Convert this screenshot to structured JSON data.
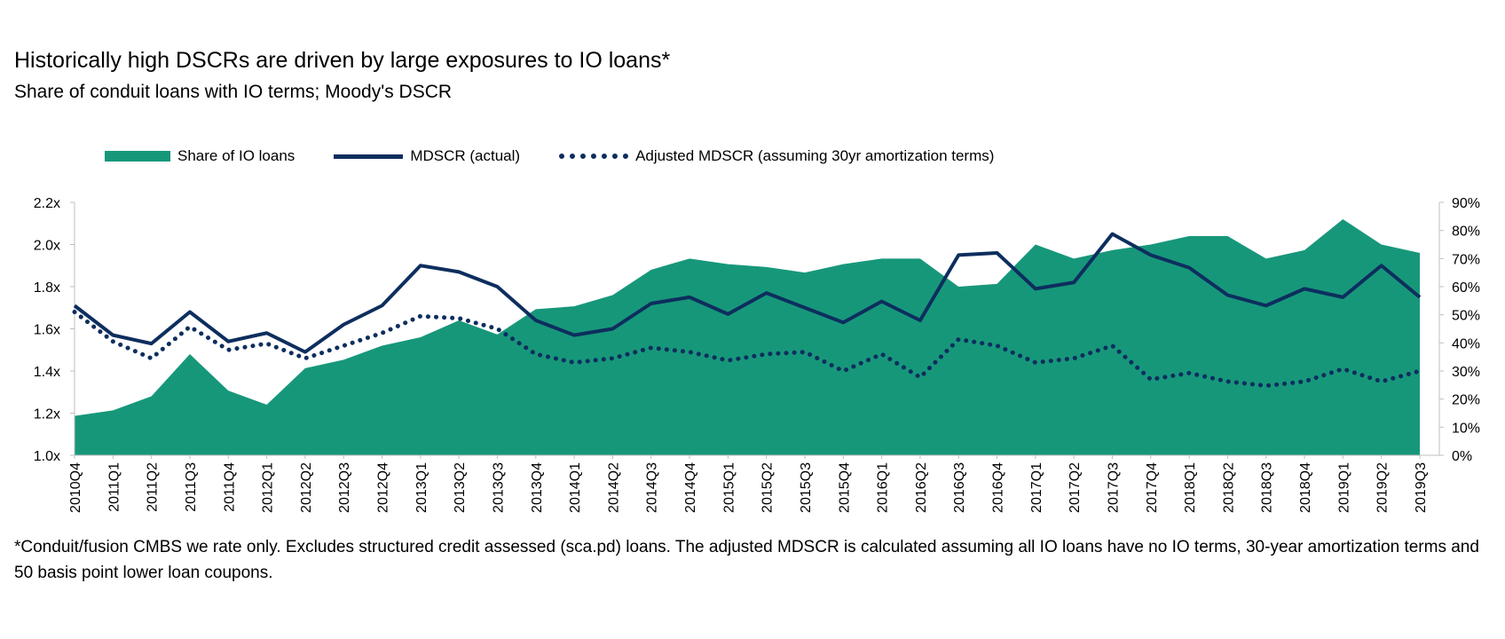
{
  "title": "Historically high DSCRs are driven by large exposures to IO loans*",
  "subtitle": "Share of conduit loans with IO terms; Moody's DSCR",
  "footnote": "*Conduit/fusion CMBS we rate only. Excludes structured credit assessed (sca.pd) loans. The adjusted MDSCR is calculated assuming all IO loans have no IO terms, 30-year amortization terms and 50 basis point lower loan coupons.",
  "colors": {
    "area": "#17977A",
    "line": "#0D2E5E"
  },
  "chart_data": {
    "type": "area+line",
    "legend_position": "top-left",
    "grid": false,
    "categories": [
      "2010Q4",
      "2011Q1",
      "2011Q2",
      "2011Q3",
      "2011Q4",
      "2012Q1",
      "2012Q2",
      "2012Q3",
      "2012Q4",
      "2013Q1",
      "2013Q2",
      "2013Q3",
      "2013Q4",
      "2014Q1",
      "2014Q2",
      "2014Q3",
      "2014Q4",
      "2015Q1",
      "2015Q2",
      "2015Q3",
      "2015Q4",
      "2016Q1",
      "2016Q2",
      "2016Q3",
      "2016Q4",
      "2017Q1",
      "2017Q2",
      "2017Q3",
      "2017Q4",
      "2018Q1",
      "2018Q2",
      "2018Q3",
      "2018Q4",
      "2019Q1",
      "2019Q2",
      "2019Q3"
    ],
    "y_left": {
      "min": 1.0,
      "max": 2.2,
      "ticks": [
        "1.0x",
        "1.2x",
        "1.4x",
        "1.6x",
        "1.8x",
        "2.0x",
        "2.2x"
      ]
    },
    "y_right": {
      "min": 0,
      "max": 90,
      "ticks": [
        "0%",
        "10%",
        "20%",
        "30%",
        "40%",
        "50%",
        "60%",
        "70%",
        "80%",
        "90%"
      ]
    },
    "series": [
      {
        "name": "Share of IO loans",
        "kind": "area",
        "axis": "right",
        "values": [
          14,
          16,
          21,
          36,
          23,
          18,
          31,
          34,
          39,
          42,
          48,
          43,
          52,
          53,
          57,
          66,
          70,
          68,
          67,
          65,
          68,
          70,
          70,
          60,
          61,
          75,
          70,
          73,
          75,
          78,
          78,
          70,
          73,
          84,
          75,
          72
        ]
      },
      {
        "name": "MDSCR (actual)",
        "kind": "line",
        "axis": "left",
        "values": [
          1.71,
          1.57,
          1.53,
          1.68,
          1.54,
          1.58,
          1.49,
          1.62,
          1.71,
          1.9,
          1.87,
          1.8,
          1.64,
          1.57,
          1.6,
          1.72,
          1.75,
          1.67,
          1.77,
          1.7,
          1.63,
          1.73,
          1.64,
          1.95,
          1.96,
          1.79,
          1.82,
          2.05,
          1.95,
          1.89,
          1.76,
          1.71,
          1.79,
          1.75,
          1.9,
          1.75
        ]
      },
      {
        "name": "Adjusted MDSCR (assuming 30yr amortization terms)",
        "kind": "dotted",
        "axis": "left",
        "values": [
          1.68,
          1.54,
          1.46,
          1.61,
          1.5,
          1.53,
          1.46,
          1.52,
          1.58,
          1.66,
          1.65,
          1.6,
          1.48,
          1.44,
          1.46,
          1.51,
          1.49,
          1.45,
          1.48,
          1.49,
          1.4,
          1.48,
          1.37,
          1.55,
          1.52,
          1.44,
          1.46,
          1.52,
          1.36,
          1.39,
          1.35,
          1.33,
          1.35,
          1.41,
          1.35,
          1.4
        ]
      }
    ]
  }
}
